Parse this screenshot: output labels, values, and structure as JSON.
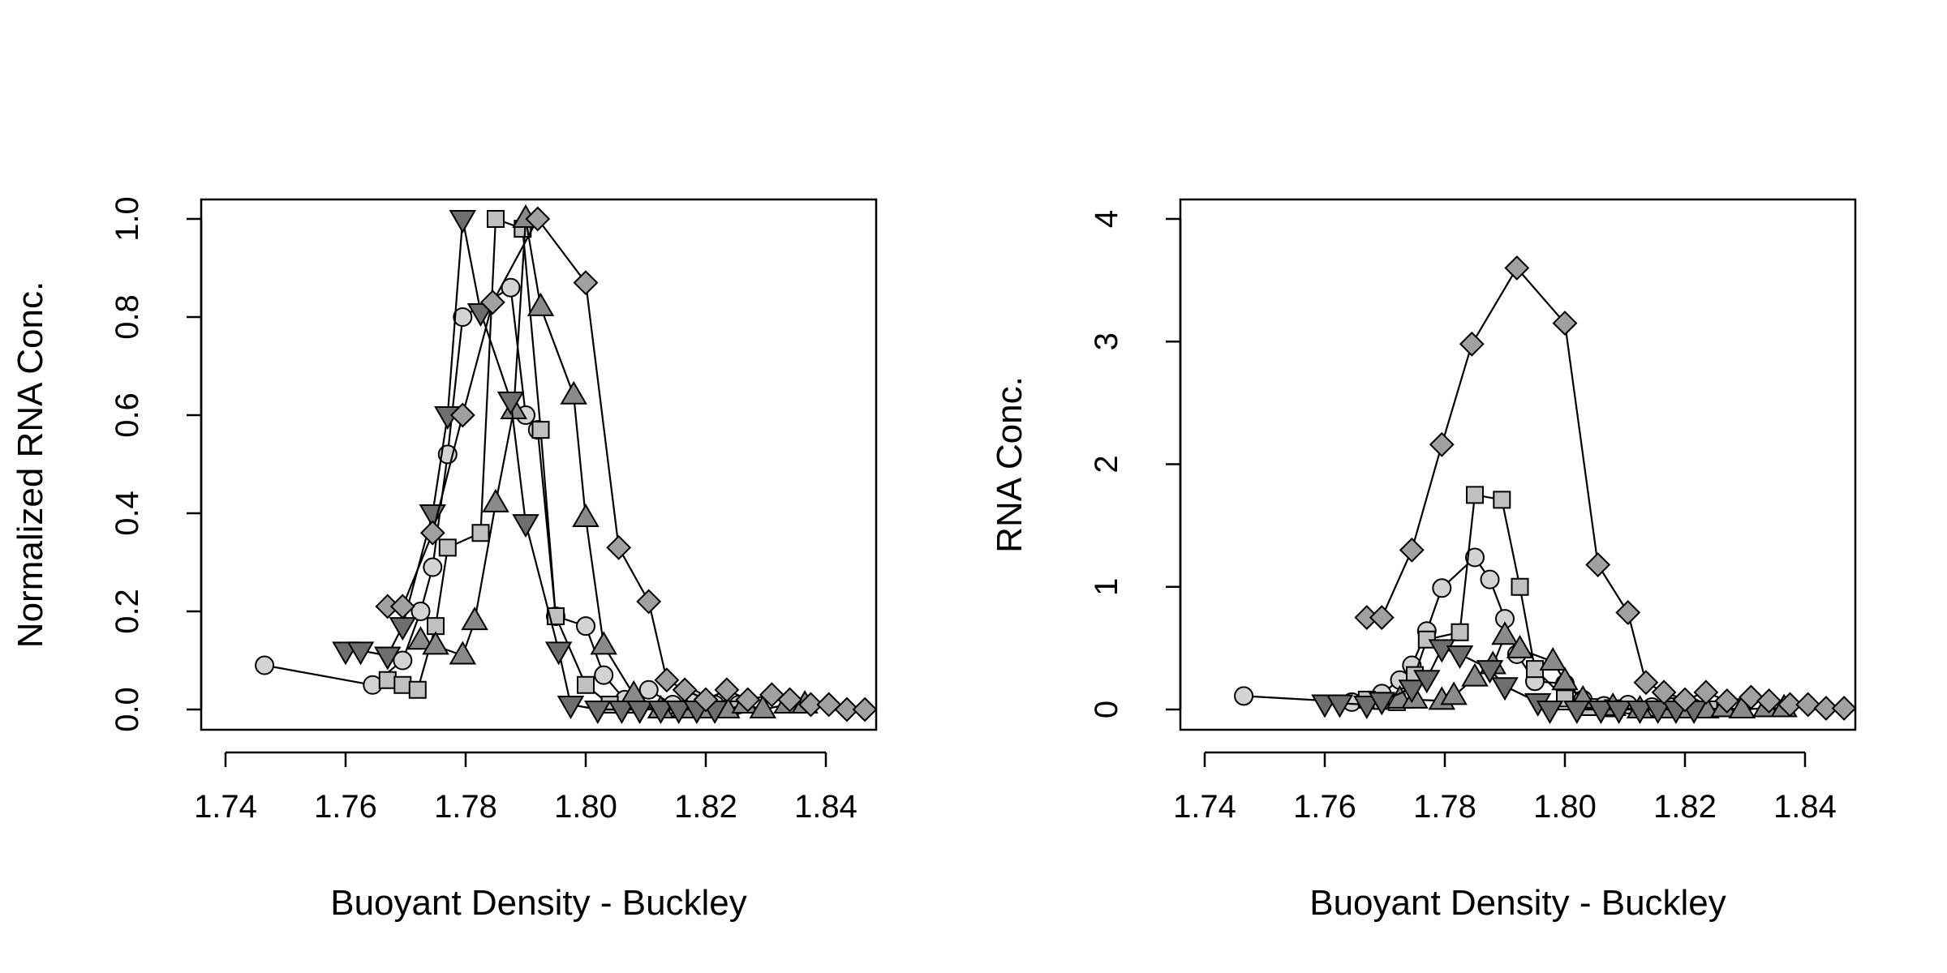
{
  "chart_data": [
    {
      "type": "line",
      "xlabel": "Buoyant Density - Buckley",
      "ylabel": "Normalized RNA Conc.",
      "xlim": [
        1.74,
        1.84
      ],
      "ylim": [
        0.0,
        1.0
      ],
      "xticks": [
        1.74,
        1.76,
        1.78,
        1.8,
        1.82,
        1.84
      ],
      "xtick_labels": [
        "1.74",
        "1.76",
        "1.78",
        "1.80",
        "1.82",
        "1.84"
      ],
      "yticks": [
        0.0,
        0.2,
        0.4,
        0.6,
        0.8,
        1.0
      ],
      "ytick_labels": [
        "0.0",
        "0.2",
        "0.4",
        "0.6",
        "0.8",
        "1.0"
      ],
      "grid": false,
      "series": [
        {
          "marker": "circle",
          "fill": "#d3d3d3",
          "x": [
            1.7465,
            1.7645,
            1.7695,
            1.7725,
            1.7745,
            1.777,
            1.7795,
            1.7875,
            1.79,
            1.792,
            1.795,
            1.8,
            1.803,
            1.8065,
            1.8105,
            1.8145,
            1.818,
            1.8215,
            1.8255
          ],
          "y": [
            0.09,
            0.05,
            0.1,
            0.2,
            0.29,
            0.52,
            0.8,
            0.86,
            0.6,
            0.57,
            0.19,
            0.17,
            0.07,
            0.02,
            0.04,
            0.01,
            0.02,
            0.01,
            0.01
          ]
        },
        {
          "marker": "square",
          "fill": "#c0c0c0",
          "x": [
            1.767,
            1.7695,
            1.772,
            1.775,
            1.777,
            1.7825,
            1.785,
            1.7895,
            1.7925,
            1.795,
            1.8,
            1.804,
            1.808,
            1.8125,
            1.8165,
            1.82,
            1.824
          ],
          "y": [
            0.06,
            0.05,
            0.04,
            0.17,
            0.33,
            0.36,
            1.0,
            0.98,
            0.57,
            0.19,
            0.05,
            0.01,
            0.01,
            0.0,
            0.0,
            0.0,
            0.0
          ]
        },
        {
          "marker": "triangle-up",
          "fill": "#8a8a8a",
          "x": [
            1.7725,
            1.775,
            1.7795,
            1.7815,
            1.785,
            1.788,
            1.79,
            1.7925,
            1.798,
            1.8,
            1.803,
            1.808,
            1.8125,
            1.8165,
            1.82,
            1.8235,
            1.8265,
            1.8295,
            1.8335,
            1.8365
          ],
          "y": [
            0.14,
            0.13,
            0.11,
            0.18,
            0.42,
            0.61,
            1.0,
            0.82,
            0.64,
            0.39,
            0.13,
            0.03,
            0.0,
            0.0,
            0.0,
            0.0,
            0.01,
            0.0,
            0.01,
            0.01
          ]
        },
        {
          "marker": "triangle-down",
          "fill": "#6e6e6e",
          "x": [
            1.76,
            1.7625,
            1.767,
            1.7695,
            1.7745,
            1.777,
            1.7795,
            1.7825,
            1.7875,
            1.79,
            1.7955,
            1.7975,
            1.802,
            1.806,
            1.809,
            1.8125,
            1.8155,
            1.8185,
            1.8215
          ],
          "y": [
            0.12,
            0.12,
            0.11,
            0.17,
            0.4,
            0.6,
            1.0,
            0.81,
            0.63,
            0.38,
            0.12,
            0.01,
            0.0,
            0.0,
            0.0,
            0.0,
            0.0,
            0.0,
            0.0
          ]
        },
        {
          "marker": "diamond",
          "fill": "#a0a0a0",
          "x": [
            1.767,
            1.7695,
            1.7745,
            1.7795,
            1.7845,
            1.792,
            1.8,
            1.8055,
            1.8105,
            1.8135,
            1.8165,
            1.82,
            1.8235,
            1.827,
            1.831,
            1.834,
            1.8375,
            1.8405,
            1.8435,
            1.8465
          ],
          "y": [
            0.21,
            0.21,
            0.36,
            0.6,
            0.83,
            1.0,
            0.87,
            0.33,
            0.22,
            0.06,
            0.04,
            0.02,
            0.04,
            0.02,
            0.03,
            0.02,
            0.01,
            0.01,
            0.0,
            0.0
          ]
        }
      ]
    },
    {
      "type": "line",
      "xlabel": "Buoyant Density - Buckley",
      "ylabel": "RNA Conc.",
      "xlim": [
        1.74,
        1.84
      ],
      "ylim": [
        0,
        4
      ],
      "xticks": [
        1.74,
        1.76,
        1.78,
        1.8,
        1.82,
        1.84
      ],
      "xtick_labels": [
        "1.74",
        "1.76",
        "1.78",
        "1.80",
        "1.82",
        "1.84"
      ],
      "yticks": [
        0,
        1,
        2,
        3,
        4
      ],
      "ytick_labels": [
        "0",
        "1",
        "2",
        "3",
        "4"
      ],
      "grid": false,
      "series": [
        {
          "marker": "circle",
          "fill": "#d3d3d3",
          "x": [
            1.7465,
            1.7645,
            1.7695,
            1.7725,
            1.7745,
            1.777,
            1.7795,
            1.785,
            1.7875,
            1.79,
            1.792,
            1.795,
            1.8,
            1.803,
            1.8065,
            1.8105,
            1.8145,
            1.818,
            1.8215
          ],
          "y": [
            0.11,
            0.06,
            0.13,
            0.24,
            0.36,
            0.64,
            0.99,
            1.24,
            1.06,
            0.74,
            0.45,
            0.23,
            0.21,
            0.08,
            0.03,
            0.04,
            0.02,
            0.02,
            0.01
          ]
        },
        {
          "marker": "square",
          "fill": "#c0c0c0",
          "x": [
            1.767,
            1.7695,
            1.772,
            1.775,
            1.777,
            1.7825,
            1.785,
            1.7895,
            1.7925,
            1.795,
            1.8,
            1.804,
            1.808,
            1.8125,
            1.8165,
            1.82,
            1.824
          ],
          "y": [
            0.08,
            0.07,
            0.06,
            0.28,
            0.57,
            0.63,
            1.75,
            1.71,
            1.0,
            0.33,
            0.09,
            0.02,
            0.01,
            0.0,
            0.0,
            0.0,
            0.0
          ]
        },
        {
          "marker": "triangle-up",
          "fill": "#8a8a8a",
          "x": [
            1.7725,
            1.775,
            1.7795,
            1.7815,
            1.785,
            1.788,
            1.79,
            1.7925,
            1.798,
            1.8,
            1.803,
            1.808,
            1.8125,
            1.8165,
            1.82,
            1.8235,
            1.8265,
            1.8295,
            1.8335,
            1.8365
          ],
          "y": [
            0.08,
            0.08,
            0.07,
            0.11,
            0.26,
            0.36,
            0.6,
            0.49,
            0.39,
            0.23,
            0.08,
            0.02,
            0.0,
            0.0,
            0.0,
            0.0,
            0.01,
            0.0,
            0.01,
            0.01
          ]
        },
        {
          "marker": "triangle-down",
          "fill": "#6e6e6e",
          "x": [
            1.76,
            1.7625,
            1.767,
            1.7695,
            1.7745,
            1.777,
            1.7795,
            1.7825,
            1.7875,
            1.79,
            1.7955,
            1.7975,
            1.802,
            1.806,
            1.809,
            1.8125,
            1.8155,
            1.8185,
            1.8215
          ],
          "y": [
            0.05,
            0.05,
            0.04,
            0.07,
            0.17,
            0.25,
            0.5,
            0.45,
            0.33,
            0.19,
            0.06,
            0.0,
            0.0,
            0.0,
            0.0,
            0.0,
            0.0,
            0.0,
            0.0
          ]
        },
        {
          "marker": "diamond",
          "fill": "#a0a0a0",
          "x": [
            1.767,
            1.7695,
            1.7745,
            1.7795,
            1.7845,
            1.792,
            1.8,
            1.8055,
            1.8105,
            1.8135,
            1.8165,
            1.82,
            1.8235,
            1.827,
            1.831,
            1.834,
            1.8375,
            1.8405,
            1.8435,
            1.8465
          ],
          "y": [
            0.75,
            0.75,
            1.3,
            2.16,
            2.98,
            3.6,
            3.15,
            1.18,
            0.79,
            0.22,
            0.14,
            0.08,
            0.14,
            0.07,
            0.1,
            0.07,
            0.04,
            0.04,
            0.01,
            0.01
          ]
        }
      ]
    }
  ]
}
